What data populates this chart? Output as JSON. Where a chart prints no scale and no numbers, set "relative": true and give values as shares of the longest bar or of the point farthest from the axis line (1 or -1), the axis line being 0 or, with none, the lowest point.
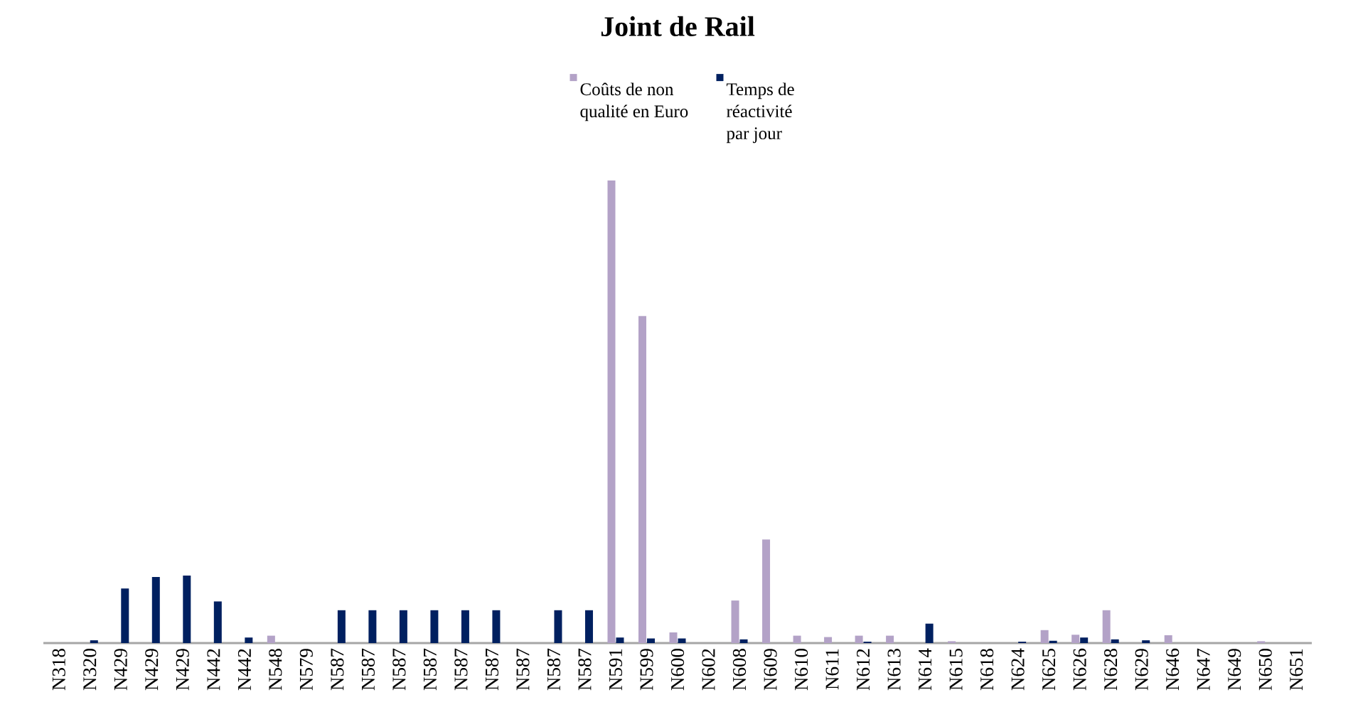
{
  "chart_data": {
    "type": "bar",
    "title": "Joint de Rail",
    "relative": true,
    "legend": "top",
    "categories": [
      "N318",
      "N320",
      "N429",
      "N429",
      "N429",
      "N442",
      "N442",
      "N548",
      "N579",
      "N587",
      "N587",
      "N587",
      "N587",
      "N587",
      "N587",
      "N587",
      "N587",
      "N587",
      "N591",
      "N599",
      "N600",
      "N602",
      "N608",
      "N609",
      "N610",
      "N611",
      "N612",
      "N613",
      "N614",
      "N615",
      "N618",
      "N624",
      "N625",
      "N626",
      "N628",
      "N629",
      "N646",
      "N647",
      "N649",
      "N650",
      "N651"
    ],
    "series": [
      {
        "name": "Coûts de non qualité en Euro",
        "color": "#b3a2c7",
        "values": [
          0,
          0,
          0,
          0,
          0,
          0,
          0,
          0.016,
          0,
          0,
          0,
          0,
          0,
          0,
          0,
          0,
          0,
          0,
          1,
          0.707,
          0.023,
          0,
          0.092,
          0.224,
          0.016,
          0.013,
          0.016,
          0.016,
          0,
          0.004,
          0,
          0,
          0.028,
          0.018,
          0.071,
          0,
          0.017,
          0,
          0,
          0.004,
          0
        ]
      },
      {
        "name": "Temps de réactivité par jour",
        "color": "#002060",
        "values": [
          0,
          0.006,
          0.118,
          0.143,
          0.146,
          0.09,
          0.012,
          0,
          0,
          0.071,
          0.071,
          0.071,
          0.071,
          0.071,
          0.071,
          0,
          0.071,
          0.071,
          0.012,
          0.01,
          0.01,
          0,
          0.008,
          0,
          0,
          0,
          0.003,
          0,
          0.042,
          0,
          0,
          0.003,
          0.005,
          0.012,
          0.008,
          0.006,
          0,
          0,
          0,
          0,
          0
        ]
      }
    ]
  }
}
